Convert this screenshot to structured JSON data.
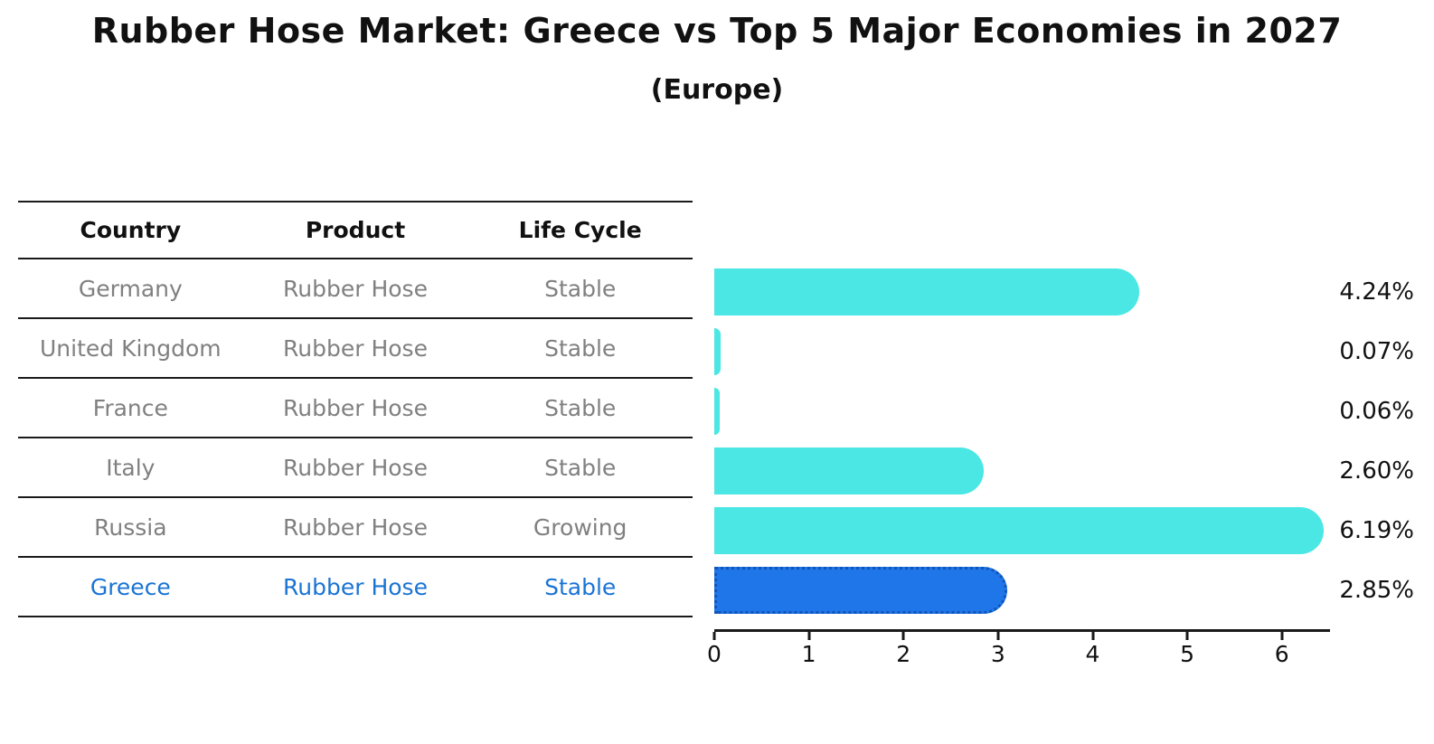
{
  "chart_data": {
    "type": "bar",
    "orientation": "horizontal",
    "title": "Rubber Hose Market: Greece vs Top 5 Major Economies in 2027",
    "subtitle": "(Europe)",
    "categories": [
      "Germany",
      "United Kingdom",
      "France",
      "Italy",
      "Russia",
      "Greece"
    ],
    "values": [
      4.24,
      0.07,
      0.06,
      2.6,
      6.19,
      2.85
    ],
    "value_labels": [
      "4.24%",
      "0.07%",
      "0.06%",
      "2.60%",
      "6.19%",
      "2.85%"
    ],
    "xlim": [
      0,
      6.5
    ],
    "xticks": [
      0,
      1,
      2,
      3,
      4,
      5,
      6
    ],
    "grid": false,
    "legend": "none",
    "bar_color": "#4AE7E4",
    "highlight_index": 5,
    "highlight_color": "#1E76E8",
    "highlight_border_color": "#1254B8",
    "highlight_text_color": "#1A74D4"
  },
  "table": {
    "headers": [
      "Country",
      "Product",
      "Life Cycle"
    ],
    "rows": [
      {
        "country": "Germany",
        "product": "Rubber Hose",
        "life_cycle": "Stable",
        "highlight": false
      },
      {
        "country": "United Kingdom",
        "product": "Rubber Hose",
        "life_cycle": "Stable",
        "highlight": false
      },
      {
        "country": "France",
        "product": "Rubber Hose",
        "life_cycle": "Stable",
        "highlight": false
      },
      {
        "country": "Italy",
        "product": "Rubber Hose",
        "life_cycle": "Stable",
        "highlight": false
      },
      {
        "country": "Russia",
        "product": "Rubber Hose",
        "life_cycle": "Growing",
        "highlight": false
      },
      {
        "country": "Greece",
        "product": "Rubber Hose",
        "life_cycle": "Stable",
        "highlight": true
      }
    ]
  }
}
